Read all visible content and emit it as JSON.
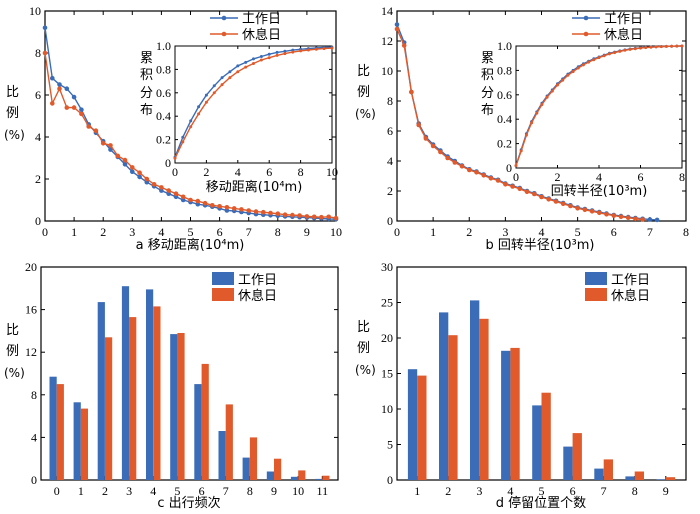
{
  "colors": {
    "workday": "#3a6cb7",
    "restday": "#e05a2b"
  },
  "legend": {
    "workday": "工作日",
    "restday": "休息日"
  },
  "ylabel": {
    "line1": "比",
    "line2": "例",
    "line3": "(%)"
  },
  "inset_ylabel": [
    "累",
    "积",
    "分",
    "布"
  ],
  "chart_data": [
    {
      "id": "a",
      "type": "line",
      "title": "a 移动距离(10⁴m)",
      "xlim": [
        0,
        10
      ],
      "ylim": [
        0,
        10
      ],
      "xticks": [
        0,
        1,
        2,
        3,
        4,
        5,
        6,
        7,
        8,
        9,
        10
      ],
      "yticks": [
        0,
        2,
        4,
        6,
        8,
        10
      ],
      "series": [
        {
          "name": "工作日",
          "x": [
            0,
            0.25,
            0.5,
            0.75,
            1,
            1.25,
            1.5,
            1.75,
            2,
            2.25,
            2.5,
            2.75,
            3,
            3.25,
            3.5,
            3.75,
            4,
            4.25,
            4.5,
            4.75,
            5,
            5.25,
            5.5,
            5.75,
            6,
            6.25,
            6.5,
            6.75,
            7,
            7.25,
            7.5,
            7.75,
            8,
            8.25,
            8.5,
            8.75,
            9,
            9.25,
            9.5,
            9.75,
            10
          ],
          "y": [
            9.2,
            6.8,
            6.5,
            6.3,
            5.9,
            5.3,
            4.6,
            4.2,
            3.8,
            3.4,
            3.05,
            2.7,
            2.35,
            2.1,
            1.85,
            1.65,
            1.45,
            1.3,
            1.15,
            1.0,
            0.9,
            0.8,
            0.75,
            0.68,
            0.6,
            0.5,
            0.48,
            0.43,
            0.38,
            0.33,
            0.3,
            0.27,
            0.25,
            0.22,
            0.2,
            0.18,
            0.16,
            0.14,
            0.12,
            0.1,
            0.08
          ]
        },
        {
          "name": "休息日",
          "x": [
            0,
            0.25,
            0.5,
            0.75,
            1,
            1.25,
            1.5,
            1.75,
            2,
            2.25,
            2.5,
            2.75,
            3,
            3.25,
            3.5,
            3.75,
            4,
            4.25,
            4.5,
            4.75,
            5,
            5.25,
            5.5,
            5.75,
            6,
            6.25,
            6.5,
            6.75,
            7,
            7.25,
            7.5,
            7.75,
            8,
            8.25,
            8.5,
            8.75,
            9,
            9.25,
            9.5,
            9.75,
            10
          ],
          "y": [
            8.0,
            5.6,
            6.3,
            5.4,
            5.4,
            5.1,
            4.5,
            4.3,
            3.7,
            3.6,
            3.1,
            2.9,
            2.55,
            2.3,
            2.0,
            1.75,
            1.6,
            1.45,
            1.3,
            1.15,
            1.0,
            0.95,
            0.85,
            0.75,
            0.7,
            0.65,
            0.6,
            0.55,
            0.5,
            0.45,
            0.42,
            0.38,
            0.35,
            0.3,
            0.28,
            0.26,
            0.22,
            0.2,
            0.18,
            0.2,
            0.14
          ]
        }
      ],
      "inset": {
        "xlabel": "移动距离(10⁴m)",
        "xlim": [
          0,
          10
        ],
        "ylim": [
          0,
          1
        ],
        "xticks": [
          0,
          2,
          4,
          6,
          8,
          10
        ],
        "yticks": [
          0,
          0.2,
          0.4,
          0.6,
          0.8,
          1.0
        ],
        "ytick_labels": [
          "0",
          "0.2",
          "0.4",
          "0.6",
          "0.8",
          "1.0"
        ],
        "series": [
          {
            "name": "工作日",
            "x": [
              0,
              0.5,
              1,
              1.5,
              2,
              2.5,
              3,
              3.5,
              4,
              4.5,
              5,
              5.5,
              6,
              6.5,
              7,
              7.5,
              8,
              8.5,
              9,
              9.5,
              10
            ],
            "y": [
              0.05,
              0.22,
              0.36,
              0.48,
              0.58,
              0.66,
              0.73,
              0.78,
              0.83,
              0.86,
              0.89,
              0.91,
              0.93,
              0.945,
              0.955,
              0.965,
              0.972,
              0.978,
              0.983,
              0.987,
              0.99
            ]
          },
          {
            "name": "休息日",
            "x": [
              0,
              0.5,
              1,
              1.5,
              2,
              2.5,
              3,
              3.5,
              4,
              4.5,
              5,
              5.5,
              6,
              6.5,
              7,
              7.5,
              8,
              8.5,
              9,
              9.5,
              10
            ],
            "y": [
              0.04,
              0.18,
              0.31,
              0.42,
              0.52,
              0.6,
              0.67,
              0.73,
              0.78,
              0.82,
              0.85,
              0.88,
              0.9,
              0.92,
              0.935,
              0.948,
              0.958,
              0.966,
              0.973,
              0.978,
              0.982
            ]
          }
        ]
      }
    },
    {
      "id": "b",
      "type": "line",
      "title": "b 回转半径(10³m)",
      "xlim": [
        0,
        8
      ],
      "ylim": [
        0,
        14
      ],
      "xticks": [
        0,
        1,
        2,
        3,
        4,
        5,
        6,
        7,
        8
      ],
      "yticks": [
        0,
        2,
        4,
        6,
        8,
        10,
        12,
        14
      ],
      "series": [
        {
          "name": "工作日",
          "x": [
            0,
            0.2,
            0.4,
            0.6,
            0.8,
            1,
            1.2,
            1.4,
            1.6,
            1.8,
            2,
            2.2,
            2.4,
            2.6,
            2.8,
            3,
            3.2,
            3.4,
            3.6,
            3.8,
            4,
            4.2,
            4.4,
            4.6,
            4.8,
            5,
            5.2,
            5.4,
            5.6,
            5.8,
            6,
            6.2,
            6.4,
            6.6,
            6.8,
            7,
            7.2
          ],
          "y": [
            13.1,
            11.9,
            8.6,
            6.5,
            5.6,
            5.1,
            4.7,
            4.3,
            4.0,
            3.7,
            3.45,
            3.3,
            3.1,
            2.9,
            2.75,
            2.5,
            2.35,
            2.2,
            2.0,
            1.85,
            1.65,
            1.5,
            1.35,
            1.2,
            1.05,
            0.9,
            0.8,
            0.7,
            0.6,
            0.5,
            0.4,
            0.33,
            0.26,
            0.2,
            0.15,
            0.1,
            0.07
          ]
        },
        {
          "name": "休息日",
          "x": [
            0,
            0.2,
            0.4,
            0.6,
            0.8,
            1,
            1.2,
            1.4,
            1.6,
            1.8,
            2,
            2.2,
            2.4,
            2.6,
            2.8,
            3,
            3.2,
            3.4,
            3.6,
            3.8,
            4,
            4.2,
            4.4,
            4.6,
            4.8,
            5,
            5.2,
            5.4,
            5.6,
            5.8,
            6,
            6.2,
            6.4,
            6.6,
            6.8
          ],
          "y": [
            12.8,
            11.7,
            8.6,
            6.4,
            5.5,
            5.0,
            4.6,
            4.2,
            3.9,
            3.65,
            3.4,
            3.25,
            3.05,
            2.85,
            2.7,
            2.45,
            2.3,
            2.15,
            1.95,
            1.8,
            1.6,
            1.45,
            1.3,
            1.15,
            1.0,
            0.85,
            0.75,
            0.65,
            0.55,
            0.45,
            0.36,
            0.28,
            0.22,
            0.15,
            0.1
          ]
        }
      ],
      "inset": {
        "xlabel": "回转半径(10³m)",
        "xlim": [
          0,
          8
        ],
        "ylim": [
          0,
          1
        ],
        "xticks": [
          0,
          2,
          4,
          6,
          8
        ],
        "yticks": [
          0,
          0.2,
          0.4,
          0.6,
          0.8,
          1.0
        ],
        "ytick_labels": [
          "0",
          "0.2",
          "0.4",
          "0.6",
          "0.8",
          "1.0"
        ],
        "series": [
          {
            "name": "工作日",
            "x": [
              0,
              0.25,
              0.5,
              0.75,
              1,
              1.25,
              1.5,
              1.75,
              2,
              2.25,
              2.5,
              2.75,
              3,
              3.25,
              3.5,
              3.75,
              4,
              4.25,
              4.5,
              4.75,
              5,
              5.25,
              5.5,
              5.75,
              6,
              6.25,
              6.5,
              6.75,
              7,
              7.25,
              7.5,
              7.75,
              8
            ],
            "y": [
              0.02,
              0.15,
              0.28,
              0.38,
              0.46,
              0.53,
              0.59,
              0.64,
              0.69,
              0.73,
              0.77,
              0.8,
              0.83,
              0.855,
              0.875,
              0.895,
              0.91,
              0.925,
              0.94,
              0.95,
              0.96,
              0.968,
              0.975,
              0.98,
              0.985,
              0.989,
              0.992,
              0.994,
              0.996,
              0.997,
              0.998,
              0.999,
              1.0
            ]
          },
          {
            "name": "休息日",
            "x": [
              0,
              0.25,
              0.5,
              0.75,
              1,
              1.25,
              1.5,
              1.75,
              2,
              2.25,
              2.5,
              2.75,
              3,
              3.25,
              3.5,
              3.75,
              4,
              4.25,
              4.5,
              4.75,
              5,
              5.25,
              5.5,
              5.75,
              6,
              6.25,
              6.5,
              6.75,
              7,
              7.25,
              7.5,
              7.75,
              8
            ],
            "y": [
              0.02,
              0.14,
              0.27,
              0.37,
              0.45,
              0.52,
              0.58,
              0.63,
              0.68,
              0.72,
              0.76,
              0.79,
              0.82,
              0.845,
              0.868,
              0.888,
              0.905,
              0.92,
              0.935,
              0.946,
              0.956,
              0.965,
              0.972,
              0.978,
              0.983,
              0.987,
              0.99,
              0.993,
              0.995,
              0.997,
              0.998,
              0.999,
              1.0
            ]
          }
        ]
      }
    },
    {
      "id": "c",
      "type": "bar",
      "title": "c 出行频次",
      "ylim": [
        0,
        20
      ],
      "yticks": [
        0,
        4,
        8,
        12,
        16,
        20
      ],
      "categories": [
        "0",
        "1",
        "2",
        "3",
        "4",
        "5",
        "6",
        "7",
        "8",
        "9",
        "10",
        "11"
      ],
      "series": [
        {
          "name": "工作日",
          "values": [
            9.7,
            7.3,
            16.7,
            18.2,
            17.9,
            13.7,
            9.0,
            4.6,
            2.1,
            0.8,
            0.3,
            0.1
          ]
        },
        {
          "name": "休息日",
          "values": [
            9.0,
            6.7,
            13.4,
            15.3,
            16.3,
            13.8,
            10.9,
            7.1,
            4.0,
            2.0,
            0.9,
            0.4
          ]
        }
      ]
    },
    {
      "id": "d",
      "type": "bar",
      "title": "d 停留位置个数",
      "ylim": [
        0,
        30
      ],
      "yticks": [
        0,
        5,
        10,
        15,
        20,
        25,
        30
      ],
      "categories": [
        "1",
        "2",
        "3",
        "4",
        "5",
        "6",
        "7",
        "8",
        "9"
      ],
      "series": [
        {
          "name": "工作日",
          "values": [
            15.6,
            23.6,
            25.3,
            18.2,
            10.5,
            4.7,
            1.6,
            0.5,
            0.1
          ]
        },
        {
          "name": "休息日",
          "values": [
            14.7,
            20.4,
            22.7,
            18.6,
            12.3,
            6.6,
            2.9,
            1.2,
            0.4
          ]
        }
      ]
    }
  ]
}
